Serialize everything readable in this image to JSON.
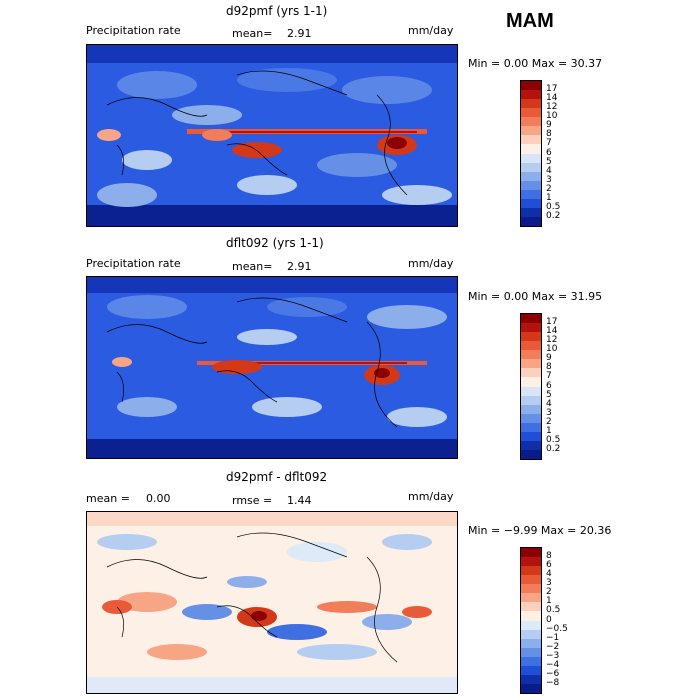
{
  "season": "MAM",
  "panels": [
    {
      "title": "d92pmf (yrs 1-1)",
      "left_label": "Precipitation rate",
      "center_label": "mean=",
      "center_value": "2.91",
      "units": "mm/day",
      "minmax": "Min =    0.00 Max =   30.37",
      "levels": [
        "17",
        "14",
        "12",
        "10",
        "9",
        "8",
        "7",
        "6",
        "5",
        "4",
        "3",
        "2",
        "1",
        "0.5",
        "0.2"
      ],
      "colors": [
        "#8b0000",
        "#b5120f",
        "#d33818",
        "#e85a38",
        "#f27d5a",
        "#f8a585",
        "#fcd0bd",
        "#fdf0e6",
        "#d7e6f6",
        "#b4cdf0",
        "#8caeea",
        "#6690e6",
        "#3f6fe1",
        "#1f4fd6",
        "#0f2fa8",
        "#0a1b8a"
      ]
    },
    {
      "title": "dflt092 (yrs 1-1)",
      "left_label": "Precipitation rate",
      "center_label": "mean=",
      "center_value": "2.91",
      "units": "mm/day",
      "minmax": "Min =    0.00 Max =   31.95",
      "levels": [
        "17",
        "14",
        "12",
        "10",
        "9",
        "8",
        "7",
        "6",
        "5",
        "4",
        "3",
        "2",
        "1",
        "0.5",
        "0.2"
      ],
      "colors": [
        "#8b0000",
        "#b5120f",
        "#d33818",
        "#e85a38",
        "#f27d5a",
        "#f8a585",
        "#fcd0bd",
        "#fdf0e6",
        "#d7e6f6",
        "#b4cdf0",
        "#8caeea",
        "#6690e6",
        "#3f6fe1",
        "#1f4fd6",
        "#0f2fa8",
        "#0a1b8a"
      ]
    },
    {
      "title": "d92pmf - dflt092",
      "left_label": "mean =",
      "left_value": "0.00",
      "center_label": "rmse =",
      "center_value": "1.44",
      "units": "mm/day",
      "minmax": "Min =  −9.99 Max =   20.36",
      "levels": [
        "8",
        "6",
        "4",
        "3",
        "2",
        "1",
        "0.5",
        "0",
        "−0.5",
        "−1",
        "−2",
        "−3",
        "−4",
        "−6",
        "−8"
      ],
      "colors": [
        "#8b0000",
        "#b5120f",
        "#d33818",
        "#e85a38",
        "#f27d5a",
        "#f8a585",
        "#fcd0bd",
        "#fdf0e6",
        "#ddeaf8",
        "#b4cdf0",
        "#8caeea",
        "#6690e6",
        "#3f6fe1",
        "#1f4fd6",
        "#0f2fa8",
        "#0a1b8a"
      ]
    }
  ]
}
